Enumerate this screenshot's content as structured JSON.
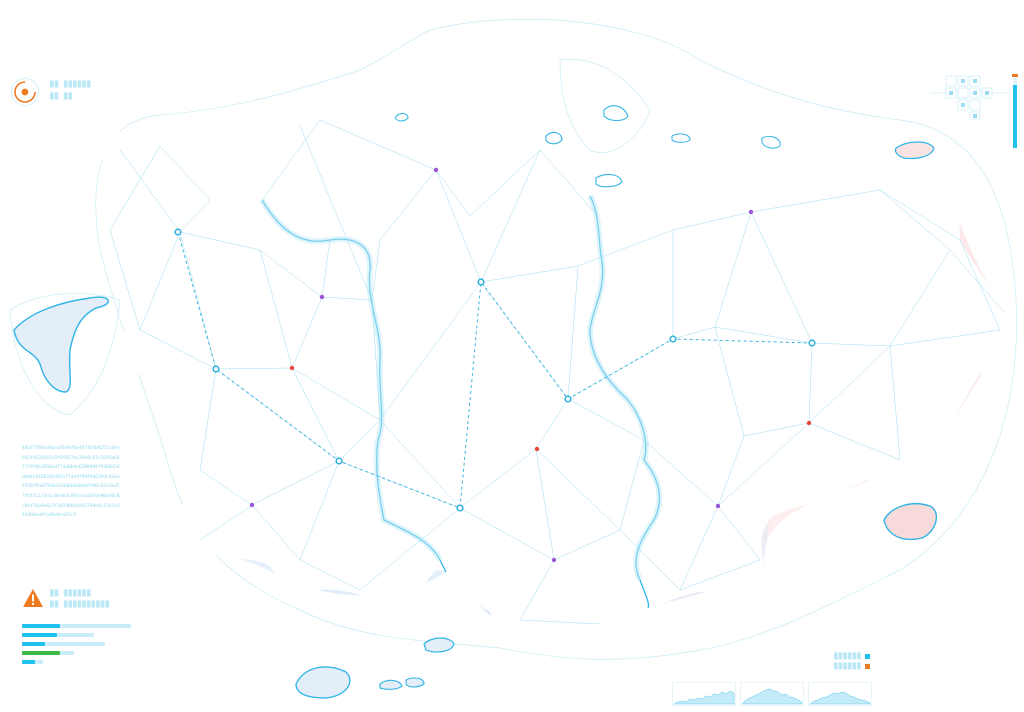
{
  "hud": {
    "top_left_lines": [
      "▒▒ ▒▒▒▒▒▒",
      "▒▒ ▒▒"
    ],
    "warning_lines": [
      "▒▒ ▒▒▒▒▒▒",
      "▒▒ ▒▒▒▒▒▒▒▒▒▒"
    ],
    "legend": [
      {
        "label": "▒▒▒▒▒▒",
        "color": "#1fc1ef"
      },
      {
        "label": "▒▒▒▒▒▒",
        "color": "#f07a22"
      }
    ],
    "hex_dump": "48d77f88cd4aea7b9bf6e497fb4b8255c6eeb43f8528265e5f6f077bc29e8c67c5695a6677f9f8b3858a4f74a0b4a62089d9f9466a54dbd4c8f6826b4935f74a9f9949a0709c43eaf93879a07950a7ad5bb6d0eb6f00c92e3ad57f6f2c1f3e1c0ed64c9b7ecea6f0e90ed8c8c6bf76e0e6c7f3d7d8b44e62790e6c13c5e4444b8ed4fa89e9cd47c3"
  },
  "bars": [
    {
      "fill": 0.33,
      "track": 0.95,
      "color": "#1fc1ef"
    },
    {
      "fill": 0.3,
      "track": 0.63,
      "color": "#1fc1ef"
    },
    {
      "fill": 0.2,
      "track": 0.72,
      "color": "#1fc1ef"
    },
    {
      "fill": 0.33,
      "track": 0.45,
      "color": "#3db843"
    },
    {
      "fill": 0.11,
      "track": 0.18,
      "color": "#1fc1ef"
    }
  ],
  "slider": {
    "level": 0.85
  },
  "colors": {
    "coast": "#2fb4e6",
    "accent": "#f07a22",
    "region_red": "#f7d3d3",
    "node": "#30b2dd",
    "poi_purple": "#9a55d6",
    "poi_red": "#e8483c"
  },
  "icons": [
    "compass-icon",
    "warning-icon"
  ]
}
